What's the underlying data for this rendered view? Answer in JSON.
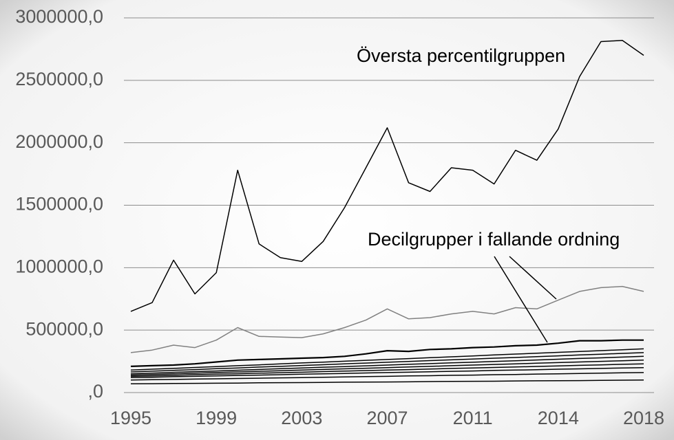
{
  "chart_data": {
    "type": "line",
    "categories": [
      "1995",
      null,
      null,
      null,
      "1999",
      null,
      null,
      null,
      "2003",
      null,
      null,
      null,
      "2007",
      null,
      null,
      null,
      "2011",
      null,
      null,
      null,
      "2014",
      null,
      null,
      null,
      "2018"
    ],
    "series": [
      {
        "color": "#000000",
        "values": [
          650000,
          720000,
          1060000,
          790000,
          960000,
          1780000,
          1190000,
          1080000,
          1050000,
          1210000,
          1480000,
          1800000,
          2120000,
          1680000,
          1610000,
          1800000,
          1780000,
          1670000,
          1940000,
          1860000,
          2110000,
          2530000,
          2810000,
          2820000,
          2700000
        ]
      },
      {
        "color": "#808080",
        "values": [
          320000,
          340000,
          380000,
          360000,
          420000,
          520000,
          450000,
          445000,
          440000,
          470000,
          520000,
          580000,
          670000,
          590000,
          600000,
          630000,
          650000,
          630000,
          680000,
          670000,
          740000,
          810000,
          840000,
          850000,
          810000
        ]
      },
      {
        "color": "#000000",
        "values": [
          210000,
          215000,
          220000,
          230000,
          245000,
          260000,
          265000,
          270000,
          275000,
          280000,
          290000,
          310000,
          335000,
          330000,
          345000,
          350000,
          360000,
          365000,
          375000,
          380000,
          395000,
          415000,
          415000,
          420000,
          420000
        ]
      },
      {
        "color": "#000000",
        "values": [
          180000,
          187000,
          194000,
          201000,
          208000,
          215000,
          222000,
          230000,
          237000,
          244000,
          251000,
          258000,
          265000,
          272000,
          279000,
          286000,
          293000,
          301000,
          308000,
          315000,
          322000,
          329000,
          336000,
          343000,
          350000
        ]
      },
      {
        "color": "#000000",
        "values": [
          165000,
          171000,
          178000,
          184000,
          191000,
          197000,
          204000,
          210000,
          217000,
          223000,
          230000,
          236000,
          243000,
          249000,
          256000,
          262000,
          268000,
          275000,
          281000,
          288000,
          294000,
          301000,
          307000,
          314000,
          320000
        ]
      },
      {
        "color": "#000000",
        "values": [
          150000,
          156000,
          162000,
          168000,
          173000,
          179000,
          185000,
          191000,
          197000,
          203000,
          208000,
          214000,
          220000,
          226000,
          232000,
          238000,
          243000,
          249000,
          255000,
          261000,
          267000,
          273000,
          278000,
          284000,
          290000
        ]
      },
      {
        "color": "#000000",
        "values": [
          140000,
          145000,
          150000,
          155000,
          160000,
          165000,
          170000,
          175000,
          180000,
          185000,
          190000,
          195000,
          200000,
          205000,
          210000,
          215000,
          220000,
          225000,
          230000,
          235000,
          240000,
          245000,
          250000,
          255000,
          260000
        ]
      },
      {
        "color": "#000000",
        "values": [
          130000,
          134000,
          138000,
          143000,
          147000,
          151000,
          155000,
          159000,
          163000,
          168000,
          172000,
          176000,
          180000,
          184000,
          188000,
          193000,
          197000,
          201000,
          205000,
          209000,
          213000,
          218000,
          222000,
          226000,
          230000
        ]
      },
      {
        "color": "#000000",
        "values": [
          120000,
          123000,
          127000,
          130000,
          133000,
          137000,
          140000,
          143000,
          147000,
          150000,
          153000,
          157000,
          160000,
          163000,
          167000,
          170000,
          173000,
          177000,
          180000,
          183000,
          187000,
          190000,
          193000,
          197000,
          200000
        ]
      },
      {
        "color": "#000000",
        "values": [
          100000,
          103000,
          105000,
          108000,
          110000,
          113000,
          115000,
          118000,
          120000,
          123000,
          125000,
          128000,
          130000,
          133000,
          135000,
          138000,
          140000,
          143000,
          145000,
          148000,
          150000,
          153000,
          155000,
          158000,
          160000
        ]
      },
      {
        "color": "#000000",
        "values": [
          70000,
          71000,
          73000,
          74000,
          75000,
          76000,
          78000,
          79000,
          80000,
          81000,
          83000,
          84000,
          85000,
          86000,
          88000,
          89000,
          90000,
          91000,
          93000,
          94000,
          95000,
          96000,
          98000,
          99000,
          100000
        ]
      }
    ],
    "ylim": [
      0,
      3000000
    ],
    "yticks": [
      {
        "value": 0,
        "label": ",0"
      },
      {
        "value": 500000,
        "label": "500000,0"
      },
      {
        "value": 1000000,
        "label": "1000000,0"
      },
      {
        "value": 1500000,
        "label": "1500000,0"
      },
      {
        "value": 2000000,
        "label": "2000000,0"
      },
      {
        "value": 2500000,
        "label": "2500000,0"
      },
      {
        "value": 3000000,
        "label": "3000000,0"
      }
    ],
    "grid": true,
    "annotations": [
      "Översta percentilgruppen",
      "Decilgrupper i fallande ordning"
    ]
  }
}
